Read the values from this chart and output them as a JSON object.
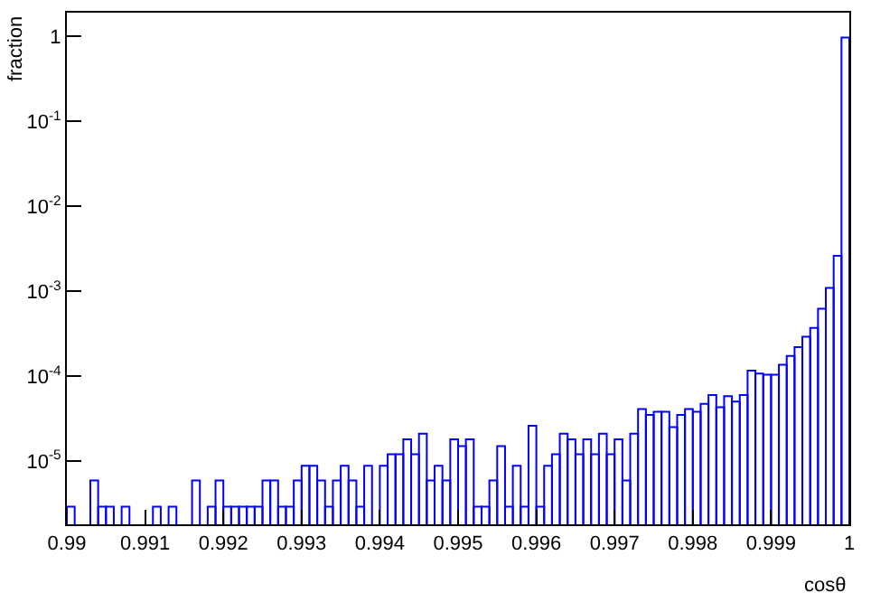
{
  "chart_data": {
    "type": "histogram",
    "xlabel": "cosθ",
    "ylabel": "fraction",
    "color": "#0000ff",
    "log": "y",
    "grid": false,
    "bins": [
      0.99,
      0.9901,
      0.9902,
      0.9903,
      0.9904,
      0.9905,
      0.9906,
      0.9907,
      0.9908,
      0.9909,
      0.991,
      0.9911,
      0.9912,
      0.9913,
      0.9914,
      0.9915,
      0.9916,
      0.9917,
      0.9918,
      0.9919,
      0.992,
      0.9921,
      0.9922,
      0.9923,
      0.9924,
      0.9925,
      0.9926,
      0.9927,
      0.9928,
      0.9929,
      0.993,
      0.9931,
      0.9932,
      0.9933,
      0.9934,
      0.9935,
      0.9936,
      0.9937,
      0.9938,
      0.9939,
      0.994,
      0.9941,
      0.9942,
      0.9943,
      0.9944,
      0.9945,
      0.9946,
      0.9947,
      0.9948,
      0.9949,
      0.995,
      0.9951,
      0.9952,
      0.9953,
      0.9954,
      0.9955,
      0.9956,
      0.9957,
      0.9958,
      0.9959,
      0.996,
      0.9961,
      0.9962,
      0.9963,
      0.9964,
      0.9965,
      0.9966,
      0.9967,
      0.9968,
      0.9969,
      0.997,
      0.9971,
      0.9972,
      0.9973,
      0.9974,
      0.9975,
      0.9976,
      0.9977,
      0.9978,
      0.9979,
      0.998,
      0.9981,
      0.9982,
      0.9983,
      0.9984,
      0.9985,
      0.9986,
      0.9987,
      0.9988,
      0.9989,
      0.999,
      0.9991,
      0.9992,
      0.9993,
      0.9994,
      0.9995,
      0.9996,
      0.9997,
      0.9998,
      0.9999,
      1.0
    ],
    "values": [
      2.9e-06,
      null,
      null,
      5.9e-06,
      2.9e-06,
      2.9e-06,
      null,
      2.9e-06,
      null,
      null,
      null,
      2.9e-06,
      null,
      2.9e-06,
      null,
      null,
      5.9e-06,
      null,
      2.9e-06,
      5.9e-06,
      2.9e-06,
      2.9e-06,
      2.9e-06,
      2.9e-06,
      2.9e-06,
      5.9e-06,
      5.9e-06,
      2.9e-06,
      2.9e-06,
      5.9e-06,
      8.8e-06,
      8.8e-06,
      5.9e-06,
      2.9e-06,
      5.9e-06,
      8.8e-06,
      5.9e-06,
      2.9e-06,
      8.8e-06,
      null,
      8.8e-06,
      1.2e-05,
      1.2e-05,
      1.8e-05,
      1.2e-05,
      2.1e-05,
      5.9e-06,
      8.8e-06,
      5.9e-06,
      1.8e-05,
      1.5e-05,
      1.8e-05,
      2.9e-06,
      2.9e-06,
      5.9e-06,
      1.5e-05,
      2.9e-06,
      8.8e-06,
      2.9e-06,
      2.6e-05,
      2.9e-06,
      8.8e-06,
      1.2e-05,
      2.1e-05,
      1.8e-05,
      1.2e-05,
      1.8e-05,
      1.2e-05,
      2.1e-05,
      1.2e-05,
      1.8e-05,
      5.9e-06,
      2.1e-05,
      4.1e-05,
      3.5e-05,
      3.8e-05,
      3.8e-05,
      2.5e-05,
      3.5e-05,
      4.1e-05,
      3.8e-05,
      4.7e-05,
      6e-05,
      4.3e-05,
      5.8e-05,
      5e-05,
      6e-05,
      0.000116,
      0.000107,
      0.000104,
      0.000104,
      0.000136,
      0.000173,
      0.00022,
      0.00029,
      0.00037,
      0.00062,
      0.00109,
      0.0026,
      0.97
    ],
    "xlim": [
      0.99,
      1.0
    ],
    "xticks": [
      0.99,
      0.991,
      0.992,
      0.993,
      0.994,
      0.995,
      0.996,
      0.997,
      0.998,
      0.999,
      1
    ],
    "ylim": [
      1.8e-06,
      1.9
    ],
    "yticks": [
      {
        "value": 1e-05,
        "label": "10$^{-5}$"
      },
      {
        "value": 0.0001,
        "label": "10$^{-4}$"
      },
      {
        "value": 0.001,
        "label": "10$^{-3}$"
      },
      {
        "value": 0.01,
        "label": "10$^{-2}$"
      },
      {
        "value": 0.1,
        "label": "10$^{-1}$"
      },
      1
    ]
  }
}
